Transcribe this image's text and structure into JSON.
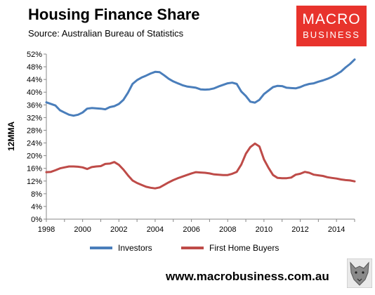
{
  "header": {
    "title": "Housing Finance Share",
    "subtitle": "Source: Australian Bureau of Statistics"
  },
  "logo": {
    "line1": "MACRO",
    "line2": "BUSINESS"
  },
  "footer": {
    "url": "www.macrobusiness.com.au"
  },
  "colors": {
    "investors": "#4a7ebb",
    "first_home_buyers": "#be4b48",
    "brand": "#e8332c"
  },
  "chart_data": {
    "type": "line",
    "title": "Housing Finance Share",
    "xlabel": "",
    "ylabel": "12MMA",
    "xlim": [
      1998,
      2015
    ],
    "ylim": [
      0,
      52
    ],
    "x_ticks": [
      "1998",
      "2000",
      "2002",
      "2004",
      "2006",
      "2008",
      "2010",
      "2012",
      "2014"
    ],
    "y_ticks": [
      "0%",
      "4%",
      "8%",
      "12%",
      "16%",
      "20%",
      "24%",
      "28%",
      "32%",
      "36%",
      "40%",
      "44%",
      "48%",
      "52%"
    ],
    "grid": false,
    "legend_position": "bottom",
    "series": [
      {
        "name": "Investors",
        "points": [
          [
            1998.0,
            36.8
          ],
          [
            1998.5,
            35.8
          ],
          [
            1998.75,
            34.3
          ],
          [
            1999.0,
            33.6
          ],
          [
            1999.25,
            32.9
          ],
          [
            1999.5,
            32.6
          ],
          [
            1999.75,
            32.9
          ],
          [
            2000.0,
            33.6
          ],
          [
            2000.25,
            34.8
          ],
          [
            2000.5,
            35.0
          ],
          [
            2000.75,
            34.9
          ],
          [
            2001.0,
            34.8
          ],
          [
            2001.25,
            34.6
          ],
          [
            2001.5,
            35.3
          ],
          [
            2001.75,
            35.6
          ],
          [
            2002.0,
            36.3
          ],
          [
            2002.25,
            37.6
          ],
          [
            2002.5,
            39.8
          ],
          [
            2002.75,
            42.6
          ],
          [
            2003.0,
            43.8
          ],
          [
            2003.25,
            44.6
          ],
          [
            2003.5,
            45.2
          ],
          [
            2003.75,
            45.9
          ],
          [
            2004.0,
            46.4
          ],
          [
            2004.25,
            46.3
          ],
          [
            2004.5,
            45.3
          ],
          [
            2004.75,
            44.2
          ],
          [
            2005.0,
            43.4
          ],
          [
            2005.25,
            42.8
          ],
          [
            2005.5,
            42.2
          ],
          [
            2005.75,
            41.8
          ],
          [
            2006.0,
            41.6
          ],
          [
            2006.25,
            41.4
          ],
          [
            2006.5,
            40.9
          ],
          [
            2006.75,
            40.8
          ],
          [
            2007.0,
            40.9
          ],
          [
            2007.25,
            41.2
          ],
          [
            2007.5,
            41.8
          ],
          [
            2007.75,
            42.3
          ],
          [
            2008.0,
            42.8
          ],
          [
            2008.25,
            43.0
          ],
          [
            2008.5,
            42.6
          ],
          [
            2008.75,
            40.2
          ],
          [
            2009.0,
            38.8
          ],
          [
            2009.25,
            37.0
          ],
          [
            2009.5,
            36.7
          ],
          [
            2009.75,
            37.6
          ],
          [
            2010.0,
            39.4
          ],
          [
            2010.25,
            40.5
          ],
          [
            2010.5,
            41.6
          ],
          [
            2010.75,
            42.0
          ],
          [
            2011.0,
            41.9
          ],
          [
            2011.25,
            41.4
          ],
          [
            2011.5,
            41.3
          ],
          [
            2011.75,
            41.2
          ],
          [
            2012.0,
            41.6
          ],
          [
            2012.25,
            42.2
          ],
          [
            2012.5,
            42.6
          ],
          [
            2012.75,
            42.8
          ],
          [
            2013.0,
            43.3
          ],
          [
            2013.25,
            43.7
          ],
          [
            2013.5,
            44.2
          ],
          [
            2013.75,
            44.8
          ],
          [
            2014.0,
            45.6
          ],
          [
            2014.25,
            46.5
          ],
          [
            2014.5,
            47.8
          ],
          [
            2014.75,
            48.9
          ],
          [
            2015.0,
            50.3
          ]
        ]
      },
      {
        "name": "First Home Buyers",
        "points": [
          [
            1998.0,
            14.8
          ],
          [
            1998.25,
            14.9
          ],
          [
            1998.5,
            15.4
          ],
          [
            1998.75,
            16.0
          ],
          [
            1999.0,
            16.3
          ],
          [
            1999.25,
            16.6
          ],
          [
            1999.5,
            16.6
          ],
          [
            1999.75,
            16.5
          ],
          [
            2000.0,
            16.3
          ],
          [
            2000.25,
            15.8
          ],
          [
            2000.5,
            16.4
          ],
          [
            2000.75,
            16.6
          ],
          [
            2001.0,
            16.7
          ],
          [
            2001.25,
            17.4
          ],
          [
            2001.5,
            17.5
          ],
          [
            2001.75,
            18.0
          ],
          [
            2002.0,
            17.1
          ],
          [
            2002.25,
            15.6
          ],
          [
            2002.5,
            13.8
          ],
          [
            2002.75,
            12.2
          ],
          [
            2003.0,
            11.4
          ],
          [
            2003.25,
            10.8
          ],
          [
            2003.5,
            10.2
          ],
          [
            2003.75,
            9.9
          ],
          [
            2004.0,
            9.7
          ],
          [
            2004.25,
            10.0
          ],
          [
            2004.5,
            10.8
          ],
          [
            2004.75,
            11.6
          ],
          [
            2005.0,
            12.3
          ],
          [
            2005.25,
            12.9
          ],
          [
            2005.5,
            13.4
          ],
          [
            2005.75,
            13.9
          ],
          [
            2006.0,
            14.4
          ],
          [
            2006.25,
            14.8
          ],
          [
            2006.5,
            14.7
          ],
          [
            2006.75,
            14.6
          ],
          [
            2007.0,
            14.4
          ],
          [
            2007.25,
            14.1
          ],
          [
            2007.5,
            14.0
          ],
          [
            2007.75,
            13.9
          ],
          [
            2008.0,
            13.9
          ],
          [
            2008.25,
            14.3
          ],
          [
            2008.5,
            14.9
          ],
          [
            2008.75,
            17.2
          ],
          [
            2009.0,
            20.6
          ],
          [
            2009.25,
            22.7
          ],
          [
            2009.5,
            23.8
          ],
          [
            2009.75,
            22.9
          ],
          [
            2010.0,
            18.8
          ],
          [
            2010.25,
            16.2
          ],
          [
            2010.5,
            13.9
          ],
          [
            2010.75,
            13.0
          ],
          [
            2011.0,
            12.9
          ],
          [
            2011.25,
            12.9
          ],
          [
            2011.5,
            13.1
          ],
          [
            2011.75,
            14.0
          ],
          [
            2012.0,
            14.3
          ],
          [
            2012.25,
            14.9
          ],
          [
            2012.5,
            14.6
          ],
          [
            2012.75,
            14.0
          ],
          [
            2013.0,
            13.8
          ],
          [
            2013.25,
            13.6
          ],
          [
            2013.5,
            13.2
          ],
          [
            2013.75,
            13.0
          ],
          [
            2014.0,
            12.8
          ],
          [
            2014.25,
            12.5
          ],
          [
            2014.5,
            12.3
          ],
          [
            2014.75,
            12.2
          ],
          [
            2015.0,
            11.9
          ]
        ]
      }
    ]
  }
}
